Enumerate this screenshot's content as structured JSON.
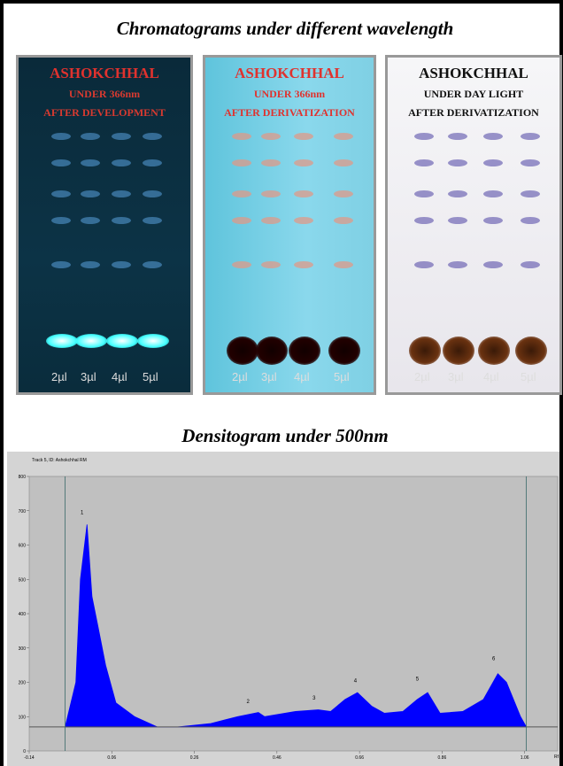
{
  "header": {
    "title": "Chromatograms under different wavelength"
  },
  "panels": [
    {
      "lines": [
        "ASHOKCHHAL",
        "UNDER 366nm",
        "AFTER DEVELOPMENT"
      ],
      "lanes": [
        "2µl",
        "3µl",
        "4µl",
        "5µl"
      ]
    },
    {
      "lines": [
        "ASHOKCHHAL",
        "UNDER 366nm",
        "AFTER DERIVATIZATION"
      ],
      "lanes": [
        "2µl",
        "3µl",
        "4µl",
        "5µl"
      ]
    },
    {
      "lines": [
        "ASHOKCHHAL",
        "UNDER DAY LIGHT",
        "AFTER DERIVATIZATION"
      ],
      "lanes": [
        "2µl",
        "3µl",
        "4µl",
        "5µl"
      ]
    }
  ],
  "densitogram": {
    "title": "Densitogram under 500nm"
  },
  "chart_data": {
    "type": "area",
    "subtitle": "Track 5, ID: Ashokchhal RM",
    "xlabel": "Rf",
    "x": [
      -0.053,
      -0.027,
      -0.016,
      0.0,
      0.012,
      0.027,
      0.045,
      0.07,
      0.115,
      0.17,
      0.22,
      0.3,
      0.365,
      0.415,
      0.43,
      0.505,
      0.56,
      0.59,
      0.625,
      0.655,
      0.69,
      0.72,
      0.765,
      0.8,
      0.825,
      0.855,
      0.91,
      0.96,
      0.995,
      1.016,
      1.05,
      1.064
    ],
    "values": [
      70,
      200,
      500,
      660,
      450,
      360,
      250,
      140,
      100,
      70,
      70,
      80,
      100,
      112,
      100,
      115,
      120,
      115,
      150,
      170,
      130,
      110,
      115,
      150,
      170,
      110,
      115,
      150,
      225,
      200,
      100,
      70
    ],
    "color": "#0000ff",
    "baseline": 70,
    "vlines": [
      -0.053,
      1.064
    ],
    "annotations": [
      {
        "text": "1",
        "x": -0.012,
        "y": 690
      },
      {
        "text": "2",
        "x": 0.39,
        "y": 140
      },
      {
        "text": "3",
        "x": 0.55,
        "y": 150
      },
      {
        "text": "4",
        "x": 0.65,
        "y": 200
      },
      {
        "text": "5",
        "x": 0.8,
        "y": 205
      },
      {
        "text": "6",
        "x": 0.985,
        "y": 265
      }
    ],
    "xlim": [
      -0.14,
      1.14
    ],
    "ylim": [
      0,
      800
    ],
    "xticks": [
      -0.14,
      0.06,
      0.26,
      0.46,
      0.66,
      0.86,
      1.06
    ],
    "yticks": [
      0,
      100,
      200,
      300,
      400,
      500,
      600,
      700,
      800
    ]
  }
}
